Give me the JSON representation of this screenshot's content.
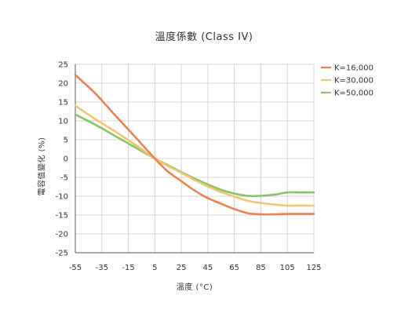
{
  "chart_data": {
    "type": "line",
    "title": "溫度係數 (Class IV)",
    "xlabel": "溫度 (°C)",
    "ylabel": "電容值變化 (%)",
    "xlim": [
      -55,
      125
    ],
    "ylim": [
      -25,
      25
    ],
    "xticks": [
      -55,
      -35,
      -15,
      5,
      25,
      45,
      65,
      85,
      105,
      125
    ],
    "yticks": [
      25,
      20,
      15,
      10,
      5,
      0,
      -5,
      -10,
      -15,
      -20,
      -25
    ],
    "grid": true,
    "legend_position": "top-right",
    "series": [
      {
        "name": "K=16,000",
        "color": "#f08050",
        "x": [
          -55,
          -40,
          -25,
          -10,
          5,
          15,
          25,
          35,
          45,
          55,
          65,
          75,
          85,
          95,
          105,
          115,
          125
        ],
        "y": [
          22.2,
          17.3,
          11.5,
          5.8,
          0.0,
          -3.5,
          -6.0,
          -8.5,
          -10.5,
          -12.0,
          -13.4,
          -14.5,
          -14.8,
          -14.8,
          -14.7,
          -14.7,
          -14.7
        ]
      },
      {
        "name": "K=30,000",
        "color": "#f5c46e",
        "x": [
          -55,
          -40,
          -25,
          -10,
          5,
          15,
          25,
          35,
          45,
          55,
          65,
          75,
          85,
          95,
          105,
          115,
          125
        ],
        "y": [
          14.0,
          10.5,
          7.2,
          3.7,
          0.0,
          -2.0,
          -3.8,
          -5.7,
          -7.4,
          -8.9,
          -10.1,
          -11.2,
          -11.8,
          -12.2,
          -12.5,
          -12.5,
          -12.5
        ]
      },
      {
        "name": "K=50,000",
        "color": "#86c466",
        "x": [
          -55,
          -40,
          -25,
          -10,
          5,
          15,
          25,
          35,
          45,
          55,
          65,
          75,
          85,
          95,
          105,
          115,
          125
        ],
        "y": [
          11.7,
          9.0,
          6.0,
          3.0,
          0.0,
          -1.8,
          -3.6,
          -5.3,
          -6.9,
          -8.3,
          -9.3,
          -9.9,
          -9.9,
          -9.6,
          -9.0,
          -9.0,
          -9.0
        ]
      }
    ]
  }
}
